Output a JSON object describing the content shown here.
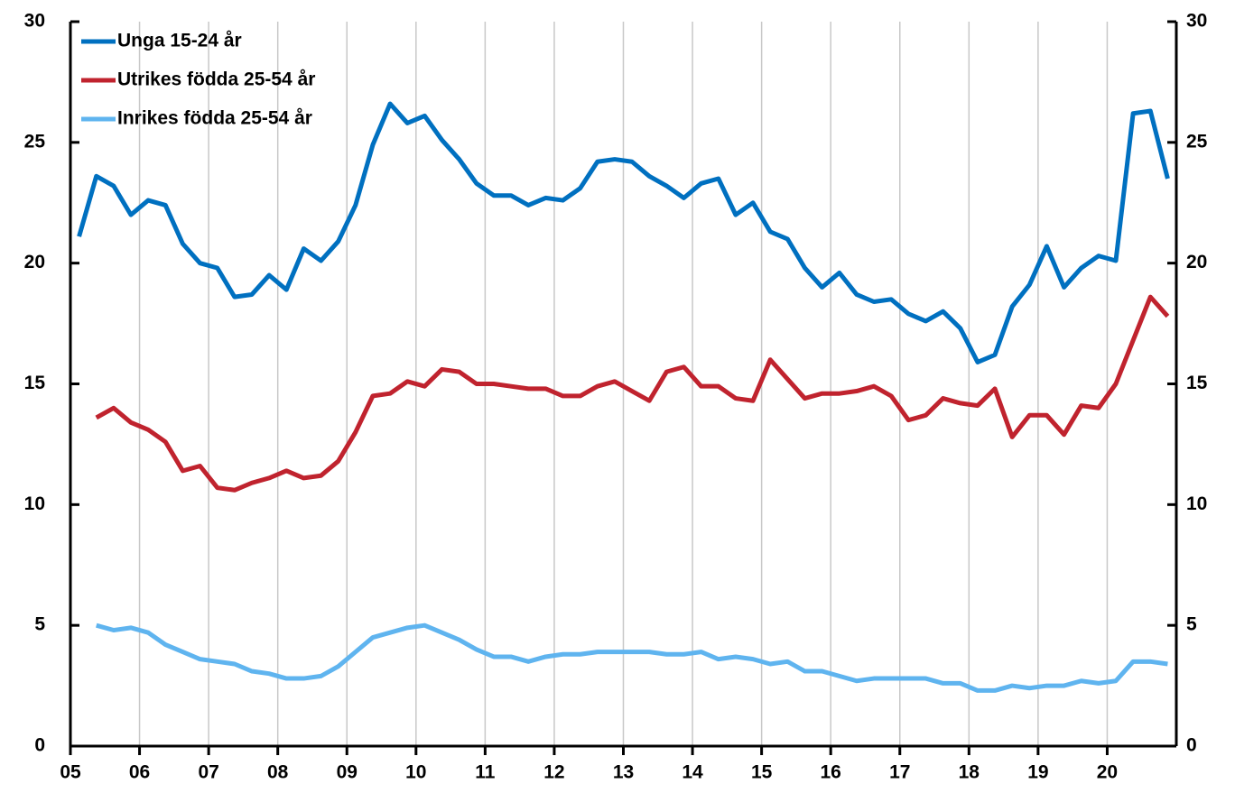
{
  "chart_data": {
    "type": "line",
    "x": [
      2005.125,
      2005.375,
      2005.625,
      2005.875,
      2006.125,
      2006.375,
      2006.625,
      2006.875,
      2007.125,
      2007.375,
      2007.625,
      2007.875,
      2008.125,
      2008.375,
      2008.625,
      2008.875,
      2009.125,
      2009.375,
      2009.625,
      2009.875,
      2010.125,
      2010.375,
      2010.625,
      2010.875,
      2011.125,
      2011.375,
      2011.625,
      2011.875,
      2012.125,
      2012.375,
      2012.625,
      2012.875,
      2013.125,
      2013.375,
      2013.625,
      2013.875,
      2014.125,
      2014.375,
      2014.625,
      2014.875,
      2015.125,
      2015.375,
      2015.625,
      2015.875,
      2016.125,
      2016.375,
      2016.625,
      2016.875,
      2017.125,
      2017.375,
      2017.625,
      2017.875,
      2018.125,
      2018.375,
      2018.625,
      2018.875,
      2019.125,
      2019.375,
      2019.625,
      2019.875,
      2020.125,
      2020.375,
      2020.625,
      2020.875
    ],
    "series": [
      {
        "name": "Unga 15-24 år",
        "color": "#0070c0",
        "values": [
          21.1,
          23.6,
          23.2,
          22.0,
          22.6,
          22.4,
          20.8,
          20.0,
          19.8,
          18.6,
          18.7,
          19.5,
          18.9,
          20.6,
          20.1,
          20.9,
          22.4,
          24.9,
          26.6,
          25.8,
          26.1,
          25.1,
          24.3,
          23.3,
          22.8,
          22.8,
          22.4,
          22.7,
          22.6,
          23.1,
          24.2,
          24.3,
          24.2,
          23.6,
          23.2,
          22.7,
          23.3,
          23.5,
          22.0,
          22.5,
          21.3,
          21.0,
          19.8,
          19.0,
          19.6,
          18.7,
          18.4,
          18.5,
          17.9,
          17.6,
          18.0,
          17.3,
          15.9,
          16.2,
          18.2,
          19.1,
          20.7,
          19.0,
          19.8,
          20.3,
          20.1,
          26.2,
          26.3,
          23.5
        ]
      },
      {
        "name": "Utrikes födda 25-54 år",
        "color": "#c0232e",
        "values": [
          null,
          13.6,
          14.0,
          13.4,
          13.1,
          12.6,
          11.4,
          11.6,
          10.7,
          10.6,
          10.9,
          11.1,
          11.4,
          11.1,
          11.2,
          11.8,
          13.0,
          14.5,
          14.6,
          15.1,
          14.9,
          15.6,
          15.5,
          15.0,
          15.0,
          14.9,
          14.8,
          14.8,
          14.5,
          14.5,
          14.9,
          15.1,
          14.7,
          14.3,
          15.5,
          15.7,
          14.9,
          14.9,
          14.4,
          14.3,
          16.0,
          15.2,
          14.4,
          14.6,
          14.6,
          14.7,
          14.9,
          14.5,
          13.5,
          13.7,
          14.4,
          14.2,
          14.1,
          14.8,
          12.8,
          13.7,
          13.7,
          12.9,
          14.1,
          14.0,
          15.0,
          16.8,
          18.6,
          17.8
        ]
      },
      {
        "name": "Inrikes födda 25-54 år",
        "color": "#5fb4ef",
        "values": [
          null,
          5.0,
          4.8,
          4.9,
          4.7,
          4.2,
          3.9,
          3.6,
          3.5,
          3.4,
          3.1,
          3.0,
          2.8,
          2.8,
          2.9,
          3.3,
          3.9,
          4.5,
          4.7,
          4.9,
          5.0,
          4.7,
          4.4,
          4.0,
          3.7,
          3.7,
          3.5,
          3.7,
          3.8,
          3.8,
          3.9,
          3.9,
          3.9,
          3.9,
          3.8,
          3.8,
          3.9,
          3.6,
          3.7,
          3.6,
          3.4,
          3.5,
          3.1,
          3.1,
          2.9,
          2.7,
          2.8,
          2.8,
          2.8,
          2.8,
          2.6,
          2.6,
          2.3,
          2.3,
          2.5,
          2.4,
          2.5,
          2.5,
          2.7,
          2.6,
          2.7,
          3.5,
          3.5,
          3.4
        ]
      }
    ],
    "xlim": [
      2005,
      2021
    ],
    "xticks": [
      {
        "value": 2005,
        "label": "05"
      },
      {
        "value": 2006,
        "label": "06"
      },
      {
        "value": 2007,
        "label": "07"
      },
      {
        "value": 2008,
        "label": "08"
      },
      {
        "value": 2009,
        "label": "09"
      },
      {
        "value": 2010,
        "label": "10"
      },
      {
        "value": 2011,
        "label": "11"
      },
      {
        "value": 2012,
        "label": "12"
      },
      {
        "value": 2013,
        "label": "13"
      },
      {
        "value": 2014,
        "label": "14"
      },
      {
        "value": 2015,
        "label": "15"
      },
      {
        "value": 2016,
        "label": "16"
      },
      {
        "value": 2017,
        "label": "17"
      },
      {
        "value": 2018,
        "label": "18"
      },
      {
        "value": 2019,
        "label": "19"
      },
      {
        "value": 2020,
        "label": "20"
      }
    ],
    "ylim": [
      0,
      30
    ],
    "yticks": [
      0,
      5,
      10,
      15,
      20,
      25,
      30
    ],
    "y2lim": [
      0,
      30
    ],
    "y2ticks": [
      0,
      5,
      10,
      15,
      20,
      25,
      30
    ],
    "grid": "x",
    "legend": "upper left"
  }
}
